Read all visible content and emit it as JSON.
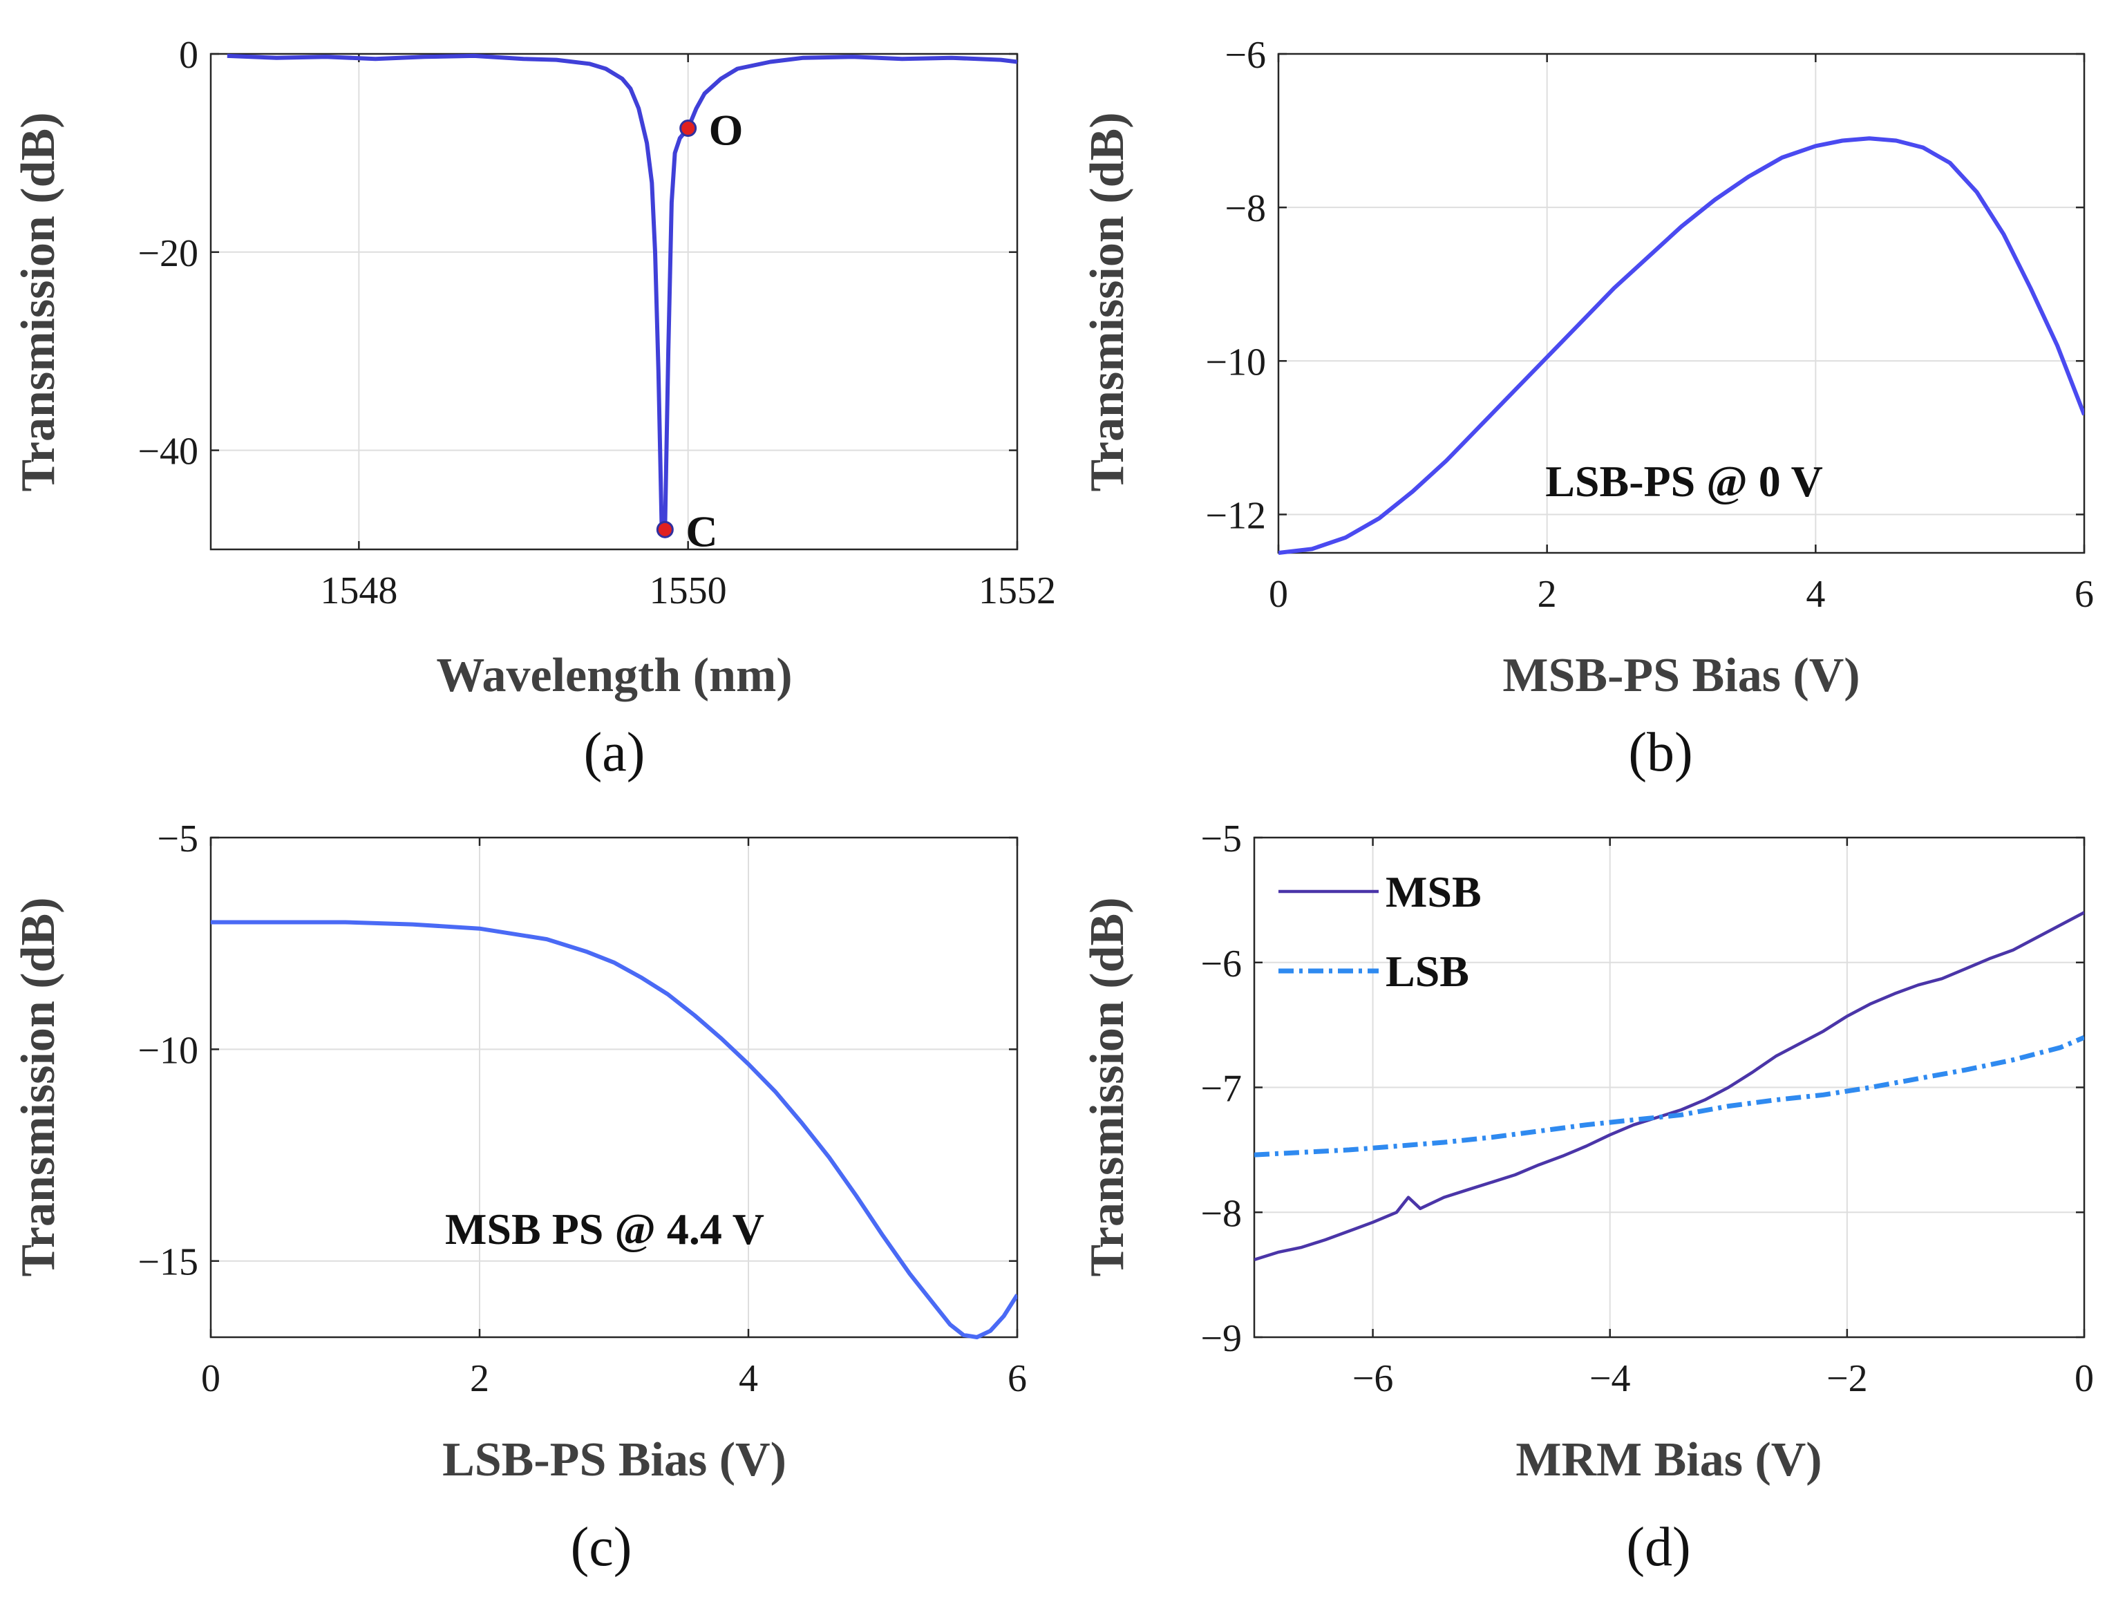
{
  "chart_data": [
    {
      "panel": "(a)",
      "type": "line",
      "xlabel": "Wavelength (nm)",
      "ylabel": "Transmission (dB)",
      "xlim": [
        1547.1,
        1552
      ],
      "ylim": [
        -50,
        0
      ],
      "xticks": [
        1548,
        1550,
        1552
      ],
      "xtick_labels": [
        "1548",
        "1550",
        "1552"
      ],
      "yticks": [
        0,
        -20,
        -40
      ],
      "ytick_labels": [
        "0",
        "−20",
        "−40"
      ],
      "grid": true,
      "color": "#4040d8",
      "series": [
        {
          "name": "Transmission",
          "x": [
            1547.2,
            1547.5,
            1547.8,
            1548.1,
            1548.4,
            1548.7,
            1549.0,
            1549.2,
            1549.4,
            1549.5,
            1549.6,
            1549.65,
            1549.7,
            1549.75,
            1549.78,
            1549.8,
            1549.82,
            1549.84,
            1549.86,
            1549.88,
            1549.9,
            1549.92,
            1549.95,
            1550.0,
            1550.05,
            1550.1,
            1550.2,
            1550.3,
            1550.5,
            1550.7,
            1551.0,
            1551.3,
            1551.6,
            1551.9,
            1552.0
          ],
          "y": [
            -0.2,
            -0.4,
            -0.3,
            -0.5,
            -0.3,
            -0.2,
            -0.5,
            -0.6,
            -1.0,
            -1.5,
            -2.5,
            -3.5,
            -5.5,
            -9,
            -13,
            -20,
            -32,
            -48,
            -48,
            -30,
            -15,
            -10,
            -8.5,
            -7.5,
            -5.5,
            -4,
            -2.5,
            -1.5,
            -0.8,
            -0.4,
            -0.3,
            -0.5,
            -0.4,
            -0.6,
            -0.8
          ]
        }
      ],
      "points": [
        {
          "label": "O",
          "x": 1550.0,
          "y": -7.5,
          "color": "#e02020"
        },
        {
          "label": "C",
          "x": 1549.86,
          "y": -48,
          "color": "#e02020"
        }
      ]
    },
    {
      "panel": "(b)",
      "type": "line",
      "xlabel": "MSB-PS Bias (V)",
      "ylabel": "Transmission (dB)",
      "xlim": [
        0,
        6
      ],
      "ylim": [
        -12.5,
        -6
      ],
      "xticks": [
        0,
        2,
        4,
        6
      ],
      "xtick_labels": [
        "0",
        "2",
        "4",
        "6"
      ],
      "yticks": [
        -6,
        -8,
        -10,
        -12
      ],
      "ytick_labels": [
        "−6",
        "−8",
        "−10",
        "−12"
      ],
      "grid": true,
      "color": "#4a4af0",
      "annotation": "LSB-PS @ 0 V",
      "series": [
        {
          "name": "Transmission",
          "x": [
            0,
            0.25,
            0.5,
            0.75,
            1.0,
            1.25,
            1.5,
            1.75,
            2.0,
            2.25,
            2.5,
            2.75,
            3.0,
            3.25,
            3.5,
            3.75,
            4.0,
            4.2,
            4.4,
            4.6,
            4.8,
            5.0,
            5.2,
            5.4,
            5.6,
            5.8,
            6.0
          ],
          "y": [
            -12.5,
            -12.45,
            -12.3,
            -12.05,
            -11.7,
            -11.3,
            -10.85,
            -10.4,
            -9.95,
            -9.5,
            -9.05,
            -8.65,
            -8.25,
            -7.9,
            -7.6,
            -7.35,
            -7.2,
            -7.13,
            -7.1,
            -7.13,
            -7.22,
            -7.42,
            -7.8,
            -8.35,
            -9.05,
            -9.8,
            -10.7
          ]
        }
      ]
    },
    {
      "panel": "(c)",
      "type": "line",
      "xlabel": "LSB-PS Bias (V)",
      "ylabel": "Transmission (dB)",
      "xlim": [
        0,
        6
      ],
      "ylim": [
        -16.8,
        -5
      ],
      "xticks": [
        0,
        2,
        4,
        6
      ],
      "xtick_labels": [
        "0",
        "2",
        "4",
        "6"
      ],
      "yticks": [
        -5,
        -10,
        -15
      ],
      "ytick_labels": [
        "−5",
        "−10",
        "−15"
      ],
      "grid": true,
      "color": "#4a6af5",
      "annotation": "MSB PS @ 4.4 V",
      "series": [
        {
          "name": "Transmission",
          "x": [
            0,
            0.5,
            1.0,
            1.5,
            2.0,
            2.5,
            2.8,
            3.0,
            3.2,
            3.4,
            3.6,
            3.8,
            4.0,
            4.2,
            4.4,
            4.6,
            4.8,
            5.0,
            5.2,
            5.4,
            5.5,
            5.6,
            5.7,
            5.8,
            5.9,
            6.0
          ],
          "y": [
            -7.0,
            -7.0,
            -7.0,
            -7.05,
            -7.15,
            -7.4,
            -7.7,
            -7.95,
            -8.3,
            -8.7,
            -9.2,
            -9.75,
            -10.35,
            -11.0,
            -11.75,
            -12.55,
            -13.45,
            -14.4,
            -15.3,
            -16.1,
            -16.5,
            -16.75,
            -16.8,
            -16.65,
            -16.3,
            -15.8
          ]
        }
      ]
    },
    {
      "panel": "(d)",
      "type": "line",
      "xlabel": "MRM Bias (V)",
      "ylabel": "Transmission (dB)",
      "xlim": [
        -7,
        0
      ],
      "ylim": [
        -9,
        -5
      ],
      "xticks": [
        -6,
        -4,
        -2,
        0
      ],
      "xtick_labels": [
        "−6",
        "−4",
        "−2",
        "0"
      ],
      "yticks": [
        -5,
        -6,
        -7,
        -8,
        -9
      ],
      "ytick_labels": [
        "−5",
        "−6",
        "−7",
        "−8",
        "−9"
      ],
      "grid": true,
      "legend": "top-left",
      "series": [
        {
          "name": "MSB",
          "color": "#4a35a8",
          "dash": "solid",
          "x": [
            -7.0,
            -6.8,
            -6.6,
            -6.4,
            -6.2,
            -6.0,
            -5.8,
            -5.7,
            -5.6,
            -5.4,
            -5.2,
            -5.0,
            -4.8,
            -4.6,
            -4.4,
            -4.2,
            -4.0,
            -3.8,
            -3.6,
            -3.4,
            -3.2,
            -3.0,
            -2.8,
            -2.6,
            -2.4,
            -2.2,
            -2.0,
            -1.8,
            -1.6,
            -1.4,
            -1.2,
            -1.0,
            -0.8,
            -0.6,
            -0.4,
            -0.2,
            0.0
          ],
          "y": [
            -8.38,
            -8.32,
            -8.28,
            -8.22,
            -8.15,
            -8.08,
            -8.0,
            -7.88,
            -7.97,
            -7.88,
            -7.82,
            -7.76,
            -7.7,
            -7.62,
            -7.55,
            -7.47,
            -7.38,
            -7.3,
            -7.24,
            -7.18,
            -7.1,
            -7.0,
            -6.88,
            -6.75,
            -6.65,
            -6.55,
            -6.43,
            -6.33,
            -6.25,
            -6.18,
            -6.13,
            -6.05,
            -5.97,
            -5.9,
            -5.8,
            -5.7,
            -5.6
          ]
        },
        {
          "name": "LSB",
          "color": "#2f8af0",
          "dash": "dashdot",
          "x": [
            -7.0,
            -6.6,
            -6.2,
            -5.8,
            -5.4,
            -5.0,
            -4.6,
            -4.2,
            -3.8,
            -3.4,
            -3.0,
            -2.6,
            -2.2,
            -1.8,
            -1.4,
            -1.0,
            -0.6,
            -0.2,
            0.0
          ],
          "y": [
            -7.54,
            -7.52,
            -7.5,
            -7.47,
            -7.44,
            -7.4,
            -7.35,
            -7.3,
            -7.26,
            -7.22,
            -7.15,
            -7.1,
            -7.06,
            -7.0,
            -6.93,
            -6.86,
            -6.78,
            -6.68,
            -6.6
          ]
        }
      ]
    }
  ]
}
